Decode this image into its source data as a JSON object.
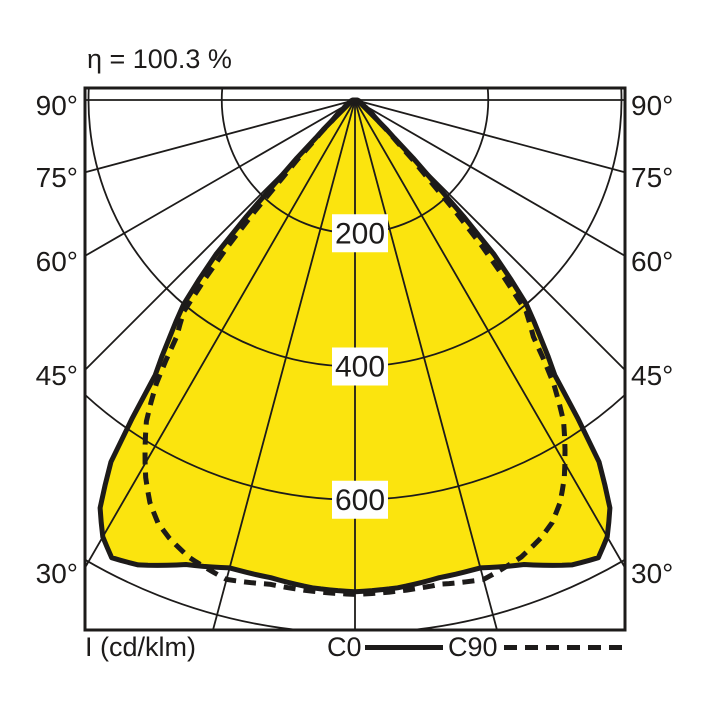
{
  "page": {
    "background": "#ffffff"
  },
  "chart": {
    "title_text": "η = 100.3 %",
    "unit_label": "I (cd/klm)",
    "legend": {
      "c0_label": "C0",
      "c90_label": "C90"
    },
    "colors": {
      "fill": "#fbe40e",
      "line": "#1d1b1a",
      "text": "#1d1b1a",
      "label_box": "#ffffff",
      "background": "#ffffff"
    }
  },
  "chart_data": {
    "type": "line",
    "subtype": "polar-photometric-intensity-diagram",
    "title": "η = 100.3 %",
    "efficiency_percent": 100.3,
    "radial_axis": {
      "label": "I (cd/klm)",
      "ticks": [
        200,
        400,
        600
      ],
      "grid_max": 800
    },
    "angle_ticks_deg": [
      90,
      75,
      60,
      45,
      30
    ],
    "angle_grid_step_deg": 15,
    "legend_position": "bottom",
    "grid": true,
    "series": [
      {
        "name": "C0",
        "style": "solid",
        "angles_deg": [
          0,
          5,
          10,
          15,
          20,
          25,
          28,
          30,
          32,
          34,
          36,
          38,
          40,
          42,
          44,
          46,
          48,
          52,
          60,
          75,
          90
        ],
        "intensity_cd_klm": [
          738,
          735,
          728,
          727,
          742,
          770,
          778,
          757,
          722,
          655,
          510,
          452,
          400,
          312,
          165,
          82,
          48,
          25,
          12,
          6,
          3
        ]
      },
      {
        "name": "C90",
        "style": "dashed",
        "angles_deg": [
          0,
          5,
          10,
          15,
          20,
          23,
          25,
          27,
          29,
          31,
          33,
          35,
          37,
          39,
          41,
          43,
          45,
          48,
          55,
          65,
          80,
          90
        ],
        "intensity_cd_klm": [
          742,
          740,
          738,
          745,
          730,
          714,
          700,
          678,
          648,
          612,
          575,
          520,
          445,
          408,
          290,
          160,
          90,
          45,
          20,
          10,
          5,
          2
        ]
      }
    ]
  }
}
